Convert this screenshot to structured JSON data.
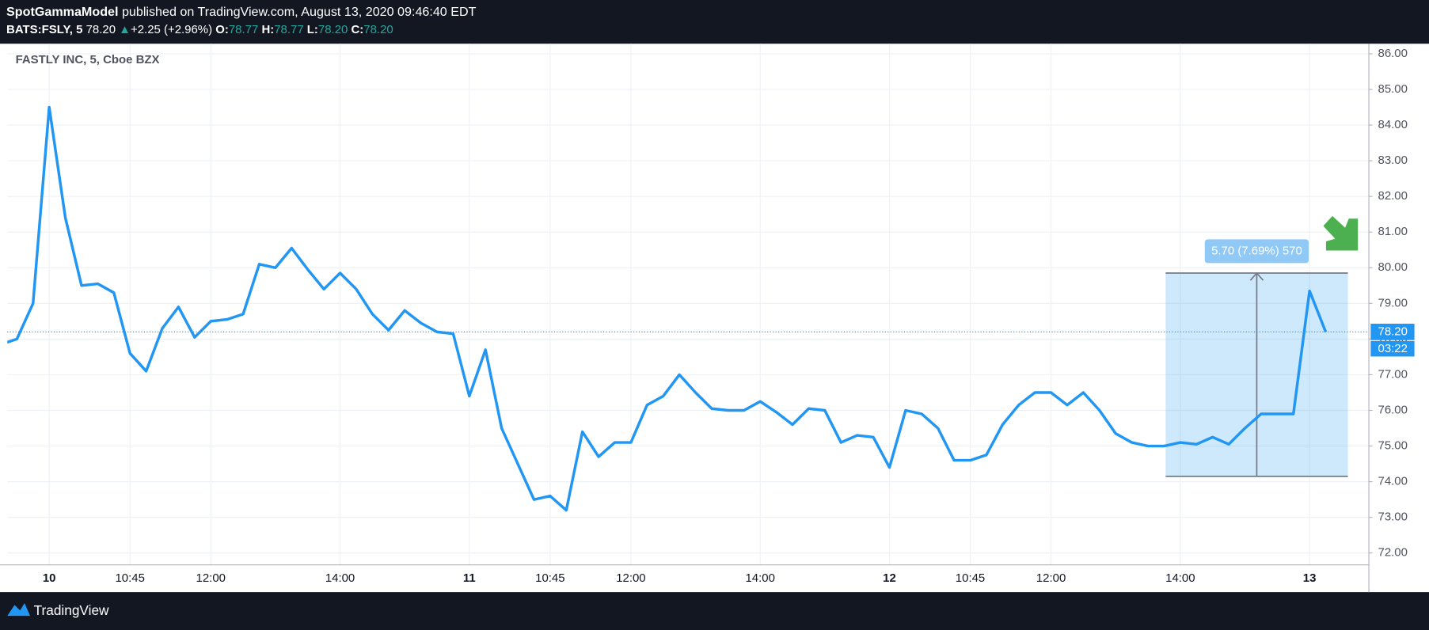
{
  "header": {
    "publisher": "SpotGammaModel",
    "published": "published on TradingView.com, August 13, 2020 09:46:40 EDT",
    "symbol": "BATS:FSLY, 5",
    "price": "78.20",
    "change_arrow": "▲",
    "change": "+2.25 (+2.96%)",
    "o_label": "O:",
    "o": "78.77",
    "h_label": "H:",
    "h": "78.77",
    "l_label": "L:",
    "l": "78.20",
    "c_label": "C:",
    "c": "78.20"
  },
  "footer": {
    "brand": "TradingView"
  },
  "chart_data": {
    "type": "line",
    "title": "FASTLY INC, 5, Cboe BZX",
    "categories": [
      null,
      null,
      null,
      "10",
      null,
      null,
      null,
      null,
      "10:45",
      null,
      null,
      null,
      null,
      "12:00",
      null,
      null,
      null,
      null,
      null,
      null,
      null,
      "14:00",
      null,
      null,
      null,
      null,
      null,
      null,
      null,
      "11",
      null,
      null,
      null,
      null,
      "10:45",
      null,
      null,
      null,
      null,
      "12:00",
      null,
      null,
      null,
      null,
      null,
      null,
      null,
      "14:00",
      null,
      null,
      null,
      null,
      null,
      null,
      null,
      "12",
      null,
      null,
      null,
      null,
      "10:45",
      null,
      null,
      null,
      null,
      "12:00",
      null,
      null,
      null,
      null,
      null,
      null,
      null,
      "14:00",
      null,
      null,
      null,
      null,
      null,
      null,
      null,
      "13",
      null
    ],
    "series": [
      {
        "name": "FSLY",
        "color": "#2196f3",
        "values": [
          77.85,
          78.0,
          79.0,
          84.5,
          81.4,
          79.5,
          79.55,
          79.3,
          77.6,
          77.1,
          78.3,
          78.9,
          78.05,
          78.5,
          78.55,
          78.7,
          80.1,
          80.0,
          80.55,
          79.95,
          79.4,
          79.85,
          79.4,
          78.7,
          78.25,
          78.8,
          78.45,
          78.2,
          78.15,
          76.4,
          77.7,
          75.5,
          74.5,
          73.5,
          73.6,
          73.2,
          75.4,
          74.7,
          75.1,
          75.1,
          76.15,
          76.4,
          77.0,
          76.5,
          76.05,
          76.0,
          76.0,
          76.25,
          75.95,
          75.6,
          76.05,
          76.0,
          75.1,
          75.3,
          75.25,
          74.4,
          76.0,
          75.9,
          75.5,
          74.6,
          74.6,
          74.75,
          75.6,
          76.15,
          76.5,
          76.5,
          76.15,
          76.5,
          76.0,
          75.35,
          75.1,
          75.0,
          75.0,
          75.1,
          75.05,
          75.25,
          75.05,
          75.5,
          75.9,
          75.9,
          75.9,
          79.35,
          78.2
        ]
      }
    ],
    "ylim": [
      71.75,
      86.25
    ],
    "yticks": [
      {
        "value": 72,
        "label": "72.00"
      },
      {
        "value": 73,
        "label": "73.00"
      },
      {
        "value": 74,
        "label": "74.00"
      },
      {
        "value": 75,
        "label": "75.00"
      },
      {
        "value": 76,
        "label": "76.00"
      },
      {
        "value": 77,
        "label": "77.00"
      },
      {
        "value": 78,
        "label": "78.00"
      },
      {
        "value": 79,
        "label": "79.00"
      },
      {
        "value": 80,
        "label": "80.00"
      },
      {
        "value": 81,
        "label": "81.00"
      },
      {
        "value": 82,
        "label": "82.00"
      },
      {
        "value": 83,
        "label": "83.00"
      },
      {
        "value": 84,
        "label": "84.00"
      },
      {
        "value": 85,
        "label": "85.00"
      },
      {
        "value": 86,
        "label": "86.00"
      }
    ],
    "grid": true,
    "last_price": {
      "value": 78.2,
      "label": "78.20"
    },
    "countdown": "03:22",
    "measure": {
      "label": "5.70 (7.69%) 570",
      "low": 74.15,
      "high": 79.85
    }
  }
}
